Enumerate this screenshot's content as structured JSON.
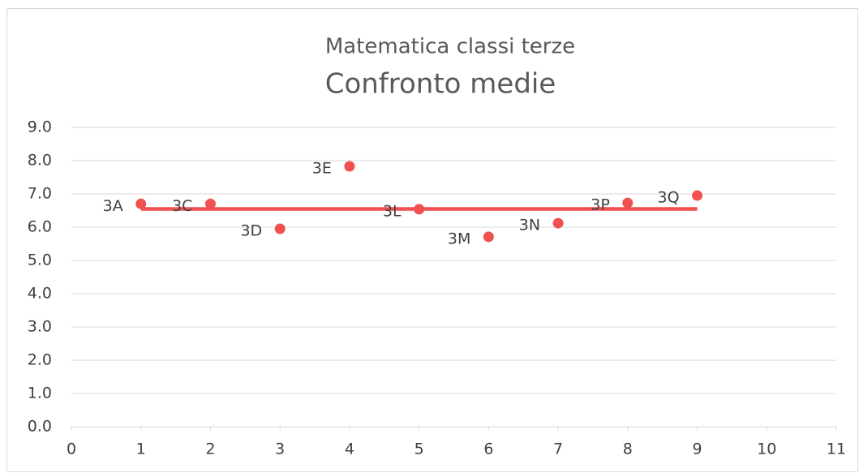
{
  "chart_data": {
    "type": "scatter",
    "title": "Matematica classi terze",
    "subtitle": "Confronto medie",
    "series": [
      {
        "color": "#f0504f",
        "x": [
          1,
          2,
          3,
          4,
          5,
          6,
          7,
          8,
          9
        ],
        "values": [
          6.7,
          6.7,
          5.95,
          7.83,
          6.54,
          5.71,
          6.12,
          6.73,
          6.95
        ],
        "labels": [
          "3A",
          "3C",
          "3D",
          "3E",
          "3L",
          "3M",
          "3N",
          "3P",
          "3Q"
        ]
      },
      {
        "color": "#f0504f",
        "x": [
          1,
          9
        ],
        "values": [
          6.55,
          6.55
        ]
      }
    ],
    "xlim": [
      0,
      11
    ],
    "xticks": [
      0,
      1,
      2,
      3,
      4,
      5,
      6,
      7,
      8,
      9,
      10,
      11
    ],
    "ylim": [
      0,
      9
    ],
    "yticks": [
      {
        "value": 0,
        "label": "0.0"
      },
      {
        "value": 1,
        "label": "1.0"
      },
      {
        "value": 2,
        "label": "2.0"
      },
      {
        "value": 3,
        "label": "3.0"
      },
      {
        "value": 4,
        "label": "4.0"
      },
      {
        "value": 5,
        "label": "5.0"
      },
      {
        "value": 6,
        "label": "6.0"
      },
      {
        "value": 7,
        "label": "7.0"
      },
      {
        "value": 8,
        "label": "8.0"
      },
      {
        "value": 9,
        "label": "9.0"
      }
    ],
    "grid": true
  }
}
